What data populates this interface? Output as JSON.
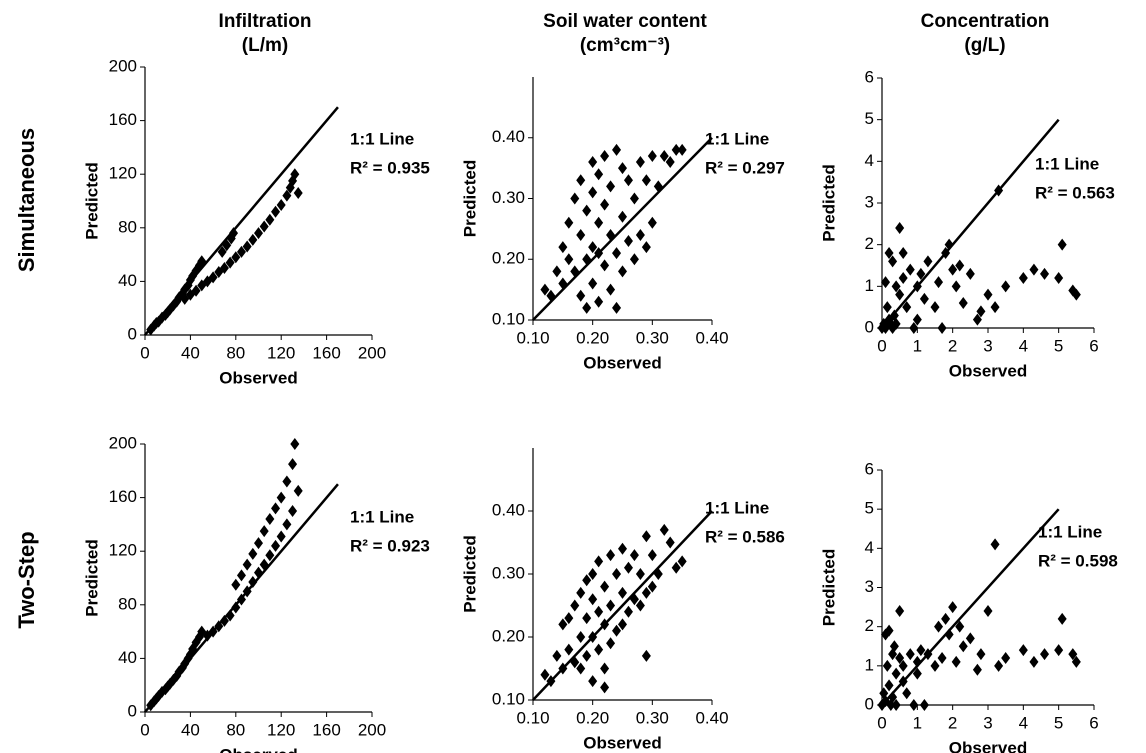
{
  "chart_data": [
    {
      "type": "scatter",
      "title": [
        "Infiltration",
        "(L/m)"
      ],
      "row_label": "Simultaneous",
      "xlabel": "Observed",
      "ylabel": "Predicted",
      "color": "#000000",
      "x": [
        5,
        8,
        10,
        12,
        15,
        18,
        20,
        22,
        25,
        28,
        30,
        33,
        35,
        38,
        40,
        42,
        45,
        48,
        50,
        35,
        40,
        45,
        50,
        55,
        60,
        65,
        70,
        75,
        80,
        85,
        90,
        95,
        100,
        105,
        110,
        115,
        120,
        125,
        128,
        130,
        132,
        135,
        68,
        72,
        76,
        78
      ],
      "y": [
        4,
        7,
        9,
        10,
        13,
        15,
        17,
        19,
        22,
        25,
        28,
        31,
        34,
        37,
        41,
        44,
        48,
        52,
        55,
        27,
        30,
        33,
        37,
        40,
        43,
        47,
        50,
        54,
        58,
        62,
        66,
        71,
        76,
        81,
        86,
        92,
        97,
        104,
        110,
        115,
        120,
        106,
        62,
        67,
        72,
        76
      ],
      "xlim": [
        0,
        200
      ],
      "ylim": [
        0,
        200
      ],
      "xticks": [
        0,
        40,
        80,
        120,
        160,
        200
      ],
      "yticks": [
        0,
        40,
        80,
        120,
        160,
        200
      ],
      "reference_line": {
        "label": "1:1 Line",
        "extent": [
          0,
          170
        ]
      },
      "annotation": "R² = 0.935"
    },
    {
      "type": "scatter",
      "title": [
        "Soil water content",
        "(cm³cm⁻³)"
      ],
      "xlabel": "Observed",
      "ylabel": "Predicted",
      "color": "#000000",
      "x": [
        0.12,
        0.13,
        0.14,
        0.15,
        0.15,
        0.16,
        0.16,
        0.17,
        0.17,
        0.18,
        0.18,
        0.18,
        0.19,
        0.19,
        0.19,
        0.2,
        0.2,
        0.2,
        0.2,
        0.21,
        0.21,
        0.21,
        0.22,
        0.22,
        0.22,
        0.23,
        0.23,
        0.23,
        0.24,
        0.24,
        0.25,
        0.25,
        0.25,
        0.26,
        0.26,
        0.27,
        0.27,
        0.28,
        0.28,
        0.29,
        0.29,
        0.3,
        0.3,
        0.31,
        0.32,
        0.33,
        0.34,
        0.35,
        0.24,
        0.21
      ],
      "y": [
        0.15,
        0.14,
        0.18,
        0.16,
        0.22,
        0.2,
        0.26,
        0.18,
        0.3,
        0.14,
        0.24,
        0.33,
        0.2,
        0.28,
        0.12,
        0.16,
        0.22,
        0.31,
        0.36,
        0.13,
        0.26,
        0.34,
        0.19,
        0.29,
        0.37,
        0.15,
        0.24,
        0.32,
        0.21,
        0.38,
        0.18,
        0.27,
        0.35,
        0.23,
        0.33,
        0.2,
        0.3,
        0.24,
        0.36,
        0.22,
        0.33,
        0.26,
        0.37,
        0.32,
        0.37,
        0.36,
        0.38,
        0.38,
        0.12,
        0.21
      ],
      "xlim": [
        0.1,
        0.4
      ],
      "ylim": [
        0.1,
        0.5
      ],
      "xticks": [
        {
          "value": 0.1,
          "label": "0.10"
        },
        {
          "value": 0.2,
          "label": "0.20"
        },
        {
          "value": 0.3,
          "label": "0.30"
        },
        {
          "value": 0.4,
          "label": "0.40"
        }
      ],
      "yticks": [
        {
          "value": 0.1,
          "label": "0.10"
        },
        {
          "value": 0.2,
          "label": "0.20"
        },
        {
          "value": 0.3,
          "label": "0.30"
        },
        {
          "value": 0.4,
          "label": "0.40"
        }
      ],
      "reference_line": {
        "label": "1:1 Line",
        "extent": [
          0.1,
          0.4
        ]
      },
      "annotation": "R² = 0.297"
    },
    {
      "type": "scatter",
      "title": [
        "Concentration",
        "(g/L)"
      ],
      "xlabel": "Observed",
      "ylabel": "Predicted",
      "color": "#000000",
      "x": [
        0,
        0.05,
        0.1,
        0.1,
        0.15,
        0.2,
        0.2,
        0.25,
        0.3,
        0.3,
        0.35,
        0.4,
        0.4,
        0.5,
        0.5,
        0.6,
        0.7,
        0.8,
        0.9,
        1.0,
        1.0,
        1.1,
        1.2,
        1.3,
        1.5,
        1.6,
        1.7,
        1.8,
        1.9,
        2.0,
        2.1,
        2.2,
        2.3,
        2.5,
        2.7,
        2.8,
        3.0,
        3.2,
        3.3,
        3.5,
        4.0,
        4.3,
        4.6,
        5.0,
        5.1,
        5.4,
        5.5,
        0.6
      ],
      "y": [
        0,
        0.1,
        1.1,
        0,
        0.5,
        1.8,
        0.2,
        0.1,
        1.6,
        0,
        0.3,
        1.0,
        0.1,
        2.4,
        0.8,
        1.2,
        0.5,
        1.4,
        0,
        0.2,
        1.0,
        1.3,
        0.7,
        1.6,
        0.5,
        1.1,
        0,
        1.8,
        2.0,
        1.4,
        1.0,
        1.5,
        0.6,
        1.3,
        0.2,
        0.4,
        0.8,
        0.5,
        3.3,
        1.0,
        1.2,
        1.4,
        1.3,
        1.2,
        2.0,
        0.9,
        0.8,
        1.8
      ],
      "xlim": [
        0,
        6
      ],
      "ylim": [
        0,
        6
      ],
      "xticks": [
        0,
        1,
        2,
        3,
        4,
        5,
        6
      ],
      "yticks": [
        0,
        1,
        2,
        3,
        4,
        5,
        6
      ],
      "reference_line": {
        "label": "1:1 Line",
        "extent": [
          0,
          5
        ]
      },
      "annotation": "R² = 0.563"
    },
    {
      "type": "scatter",
      "row_label": "Two-Step",
      "xlabel": "Observed",
      "ylabel": "Predicted",
      "color": "#000000",
      "x": [
        5,
        8,
        10,
        12,
        15,
        18,
        20,
        22,
        25,
        28,
        30,
        33,
        35,
        38,
        40,
        42,
        45,
        48,
        50,
        55,
        60,
        65,
        70,
        75,
        80,
        85,
        90,
        95,
        100,
        105,
        110,
        115,
        120,
        125,
        130,
        135,
        80,
        85,
        90,
        95,
        100,
        105,
        110,
        115,
        120,
        125,
        130,
        132
      ],
      "y": [
        5,
        8,
        10,
        12,
        15,
        17,
        19,
        21,
        24,
        27,
        30,
        33,
        36,
        40,
        43,
        47,
        52,
        56,
        60,
        57,
        60,
        64,
        68,
        72,
        78,
        84,
        90,
        97,
        104,
        110,
        117,
        124,
        131,
        140,
        150,
        165,
        95,
        102,
        110,
        118,
        126,
        135,
        144,
        152,
        160,
        172,
        185,
        200
      ],
      "xlim": [
        0,
        200
      ],
      "ylim": [
        0,
        200
      ],
      "xticks": [
        0,
        40,
        80,
        120,
        160,
        200
      ],
      "yticks": [
        0,
        40,
        80,
        120,
        160,
        200
      ],
      "reference_line": {
        "label": "1:1 Line",
        "extent": [
          0,
          170
        ]
      },
      "annotation": "R² = 0.923"
    },
    {
      "type": "scatter",
      "xlabel": "Observed",
      "ylabel": "Predicted",
      "color": "#000000",
      "x": [
        0.12,
        0.13,
        0.14,
        0.15,
        0.15,
        0.16,
        0.16,
        0.17,
        0.17,
        0.18,
        0.18,
        0.18,
        0.19,
        0.19,
        0.19,
        0.2,
        0.2,
        0.2,
        0.2,
        0.21,
        0.21,
        0.21,
        0.22,
        0.22,
        0.22,
        0.23,
        0.23,
        0.23,
        0.24,
        0.24,
        0.25,
        0.25,
        0.25,
        0.26,
        0.26,
        0.27,
        0.27,
        0.28,
        0.28,
        0.29,
        0.29,
        0.3,
        0.3,
        0.31,
        0.32,
        0.33,
        0.34,
        0.35,
        0.29,
        0.22
      ],
      "y": [
        0.14,
        0.13,
        0.17,
        0.15,
        0.22,
        0.18,
        0.23,
        0.16,
        0.25,
        0.15,
        0.2,
        0.27,
        0.17,
        0.23,
        0.29,
        0.13,
        0.2,
        0.26,
        0.3,
        0.18,
        0.24,
        0.32,
        0.15,
        0.22,
        0.28,
        0.19,
        0.25,
        0.33,
        0.21,
        0.3,
        0.22,
        0.27,
        0.34,
        0.24,
        0.31,
        0.26,
        0.33,
        0.25,
        0.3,
        0.27,
        0.36,
        0.28,
        0.33,
        0.3,
        0.37,
        0.35,
        0.31,
        0.32,
        0.17,
        0.12
      ],
      "xlim": [
        0.1,
        0.4
      ],
      "ylim": [
        0.1,
        0.5
      ],
      "xticks": [
        {
          "value": 0.1,
          "label": "0.10"
        },
        {
          "value": 0.2,
          "label": "0.20"
        },
        {
          "value": 0.3,
          "label": "0.30"
        },
        {
          "value": 0.4,
          "label": "0.40"
        }
      ],
      "yticks": [
        {
          "value": 0.1,
          "label": "0.10"
        },
        {
          "value": 0.2,
          "label": "0.20"
        },
        {
          "value": 0.3,
          "label": "0.30"
        },
        {
          "value": 0.4,
          "label": "0.40"
        }
      ],
      "reference_line": {
        "label": "1:1 Line",
        "extent": [
          0.1,
          0.4
        ]
      },
      "annotation": "R² = 0.586"
    },
    {
      "type": "scatter",
      "xlabel": "Observed",
      "ylabel": "Predicted",
      "color": "#000000",
      "x": [
        0,
        0.05,
        0.1,
        0.1,
        0.15,
        0.2,
        0.2,
        0.25,
        0.3,
        0.3,
        0.35,
        0.4,
        0.4,
        0.5,
        0.5,
        0.6,
        0.7,
        0.8,
        0.9,
        1.0,
        1.0,
        1.1,
        1.2,
        1.3,
        1.5,
        1.6,
        1.7,
        1.8,
        1.9,
        2.0,
        2.1,
        2.2,
        2.3,
        2.5,
        2.7,
        2.8,
        3.0,
        3.2,
        3.3,
        3.5,
        4.0,
        4.3,
        4.6,
        5.0,
        5.1,
        5.4,
        5.5,
        0.6
      ],
      "y": [
        0,
        0.3,
        1.8,
        0.1,
        1.0,
        1.9,
        0.5,
        0,
        1.3,
        0.2,
        1.5,
        0.8,
        0,
        2.4,
        1.2,
        1.0,
        0.3,
        1.3,
        0,
        0.8,
        1.1,
        1.4,
        0,
        1.3,
        1.0,
        2.0,
        1.2,
        2.2,
        1.8,
        2.5,
        1.1,
        2.0,
        1.5,
        1.7,
        0.9,
        1.3,
        2.4,
        4.1,
        1.0,
        1.2,
        1.4,
        1.1,
        1.3,
        1.4,
        2.2,
        1.3,
        1.1,
        0.6
      ],
      "xlim": [
        0,
        6
      ],
      "ylim": [
        0,
        6
      ],
      "xticks": [
        0,
        1,
        2,
        3,
        4,
        5,
        6
      ],
      "yticks": [
        0,
        1,
        2,
        3,
        4,
        5,
        6
      ],
      "reference_line": {
        "label": "1:1 Line",
        "extent": [
          0,
          5
        ]
      },
      "annotation": "R² = 0.598"
    }
  ]
}
